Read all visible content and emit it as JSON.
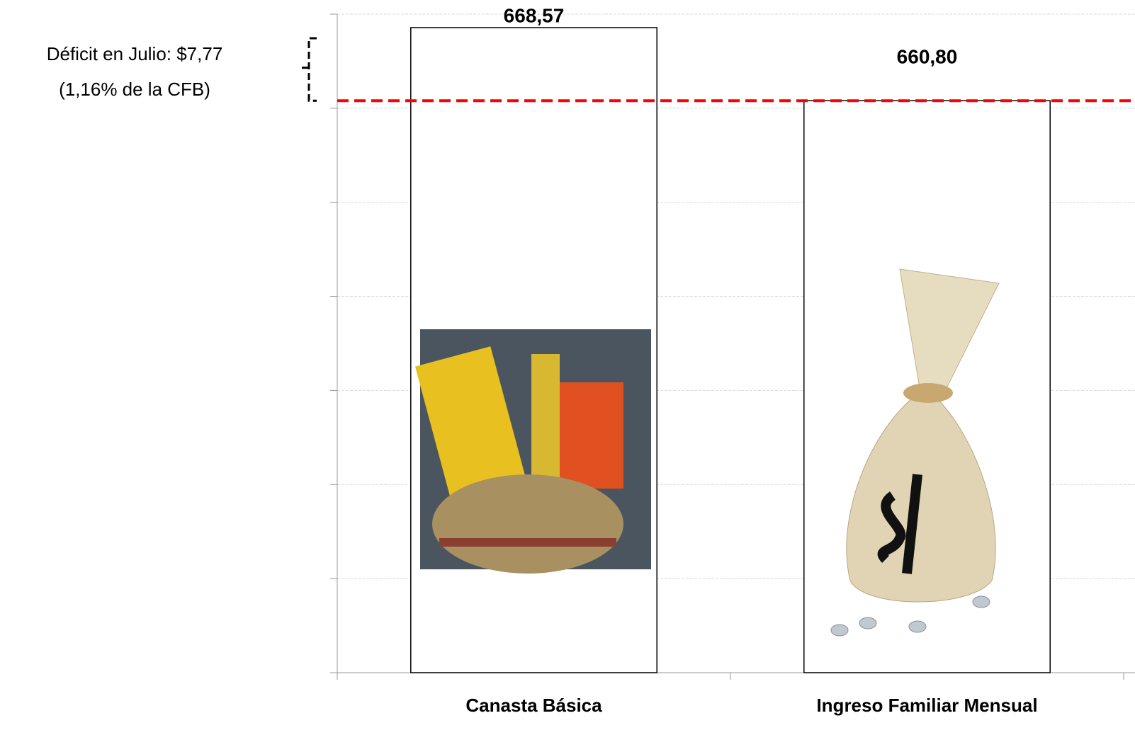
{
  "chart_data": {
    "type": "bar",
    "annotations": [
      "Déficit en Julio: $7,77",
      "(1,16% de la CFB)"
    ],
    "categories": [
      "Canasta Básica",
      "Ingreso Familiar Mensual"
    ],
    "values": [
      668.57,
      660.8
    ],
    "value_labels": [
      "668,57",
      "660,80"
    ],
    "color": "#ffffff",
    "ylim": [
      600,
      670
    ],
    "yticks": [
      600,
      610,
      620,
      630,
      640,
      650,
      660,
      670
    ],
    "grid": true
  }
}
